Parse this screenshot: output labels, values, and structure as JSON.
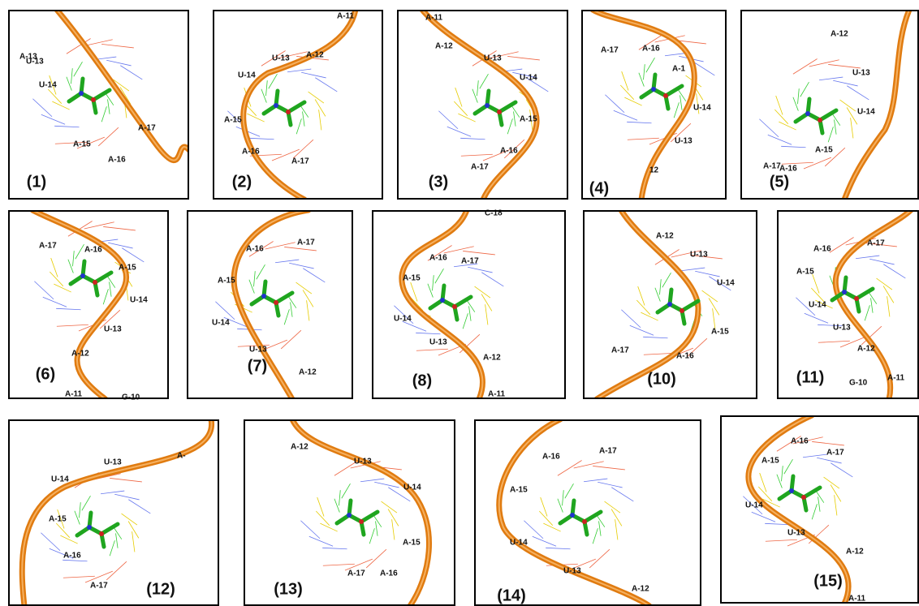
{
  "panels": [
    {
      "label": "(1)",
      "residues": [
        "A-13",
        "U-13",
        "U-14",
        "A-17",
        "A-15",
        "A-16"
      ]
    },
    {
      "label": "(2)",
      "residues": [
        "A-11",
        "U-13",
        "A-12",
        "U-14",
        "A-15",
        "A-16",
        "A-17"
      ]
    },
    {
      "label": "(3)",
      "residues": [
        "A-11",
        "A-12",
        "U-13",
        "U-14",
        "A-15",
        "A-16",
        "A-17"
      ]
    },
    {
      "label": "(4)",
      "residues": [
        "A-17",
        "A-16",
        "A-1",
        "U-14",
        "U-13",
        "12"
      ]
    },
    {
      "label": "(5)",
      "residues": [
        "A-12",
        "U-13",
        "U-14",
        "A-15",
        "A-17",
        "A-16"
      ]
    },
    {
      "label": "(6)",
      "residues": [
        "A-17",
        "A-16",
        "A-15",
        "U-14",
        "U-13",
        "A-12",
        "A-11",
        "G-10"
      ]
    },
    {
      "label": "(7)",
      "residues": [
        "A-16",
        "A-17",
        "A-15",
        "U-14",
        "U-13",
        "A-12"
      ]
    },
    {
      "label": "(8)",
      "residues": [
        "C-18",
        "A-16",
        "A-17",
        "A-15",
        "U-14",
        "U-13",
        "A-12",
        "A-11"
      ]
    },
    {
      "label": "(10)",
      "residues": [
        "A-12",
        "U-13",
        "U-14",
        "A-15",
        "A-17",
        "A-16"
      ]
    },
    {
      "label": "(11)",
      "residues": [
        "A-16",
        "A-17",
        "A-15",
        "U-14",
        "U-13",
        "A-12",
        "G-10",
        "A-11"
      ]
    },
    {
      "label": "(12)",
      "residues": [
        "A-",
        "U-13",
        "U-14",
        "A-15",
        "A-16",
        "A-17"
      ]
    },
    {
      "label": "(13)",
      "residues": [
        "A-12",
        "U-13",
        "U-14",
        "A-15",
        "A-17",
        "A-16"
      ]
    },
    {
      "label": "(14)",
      "residues": [
        "A-16",
        "A-17",
        "A-15",
        "U-14",
        "U-13",
        "A-12"
      ]
    },
    {
      "label": "(15)",
      "residues": [
        "A-16",
        "A-17",
        "A-15",
        "U-14",
        "U-13",
        "A-12",
        "A-11"
      ]
    }
  ]
}
